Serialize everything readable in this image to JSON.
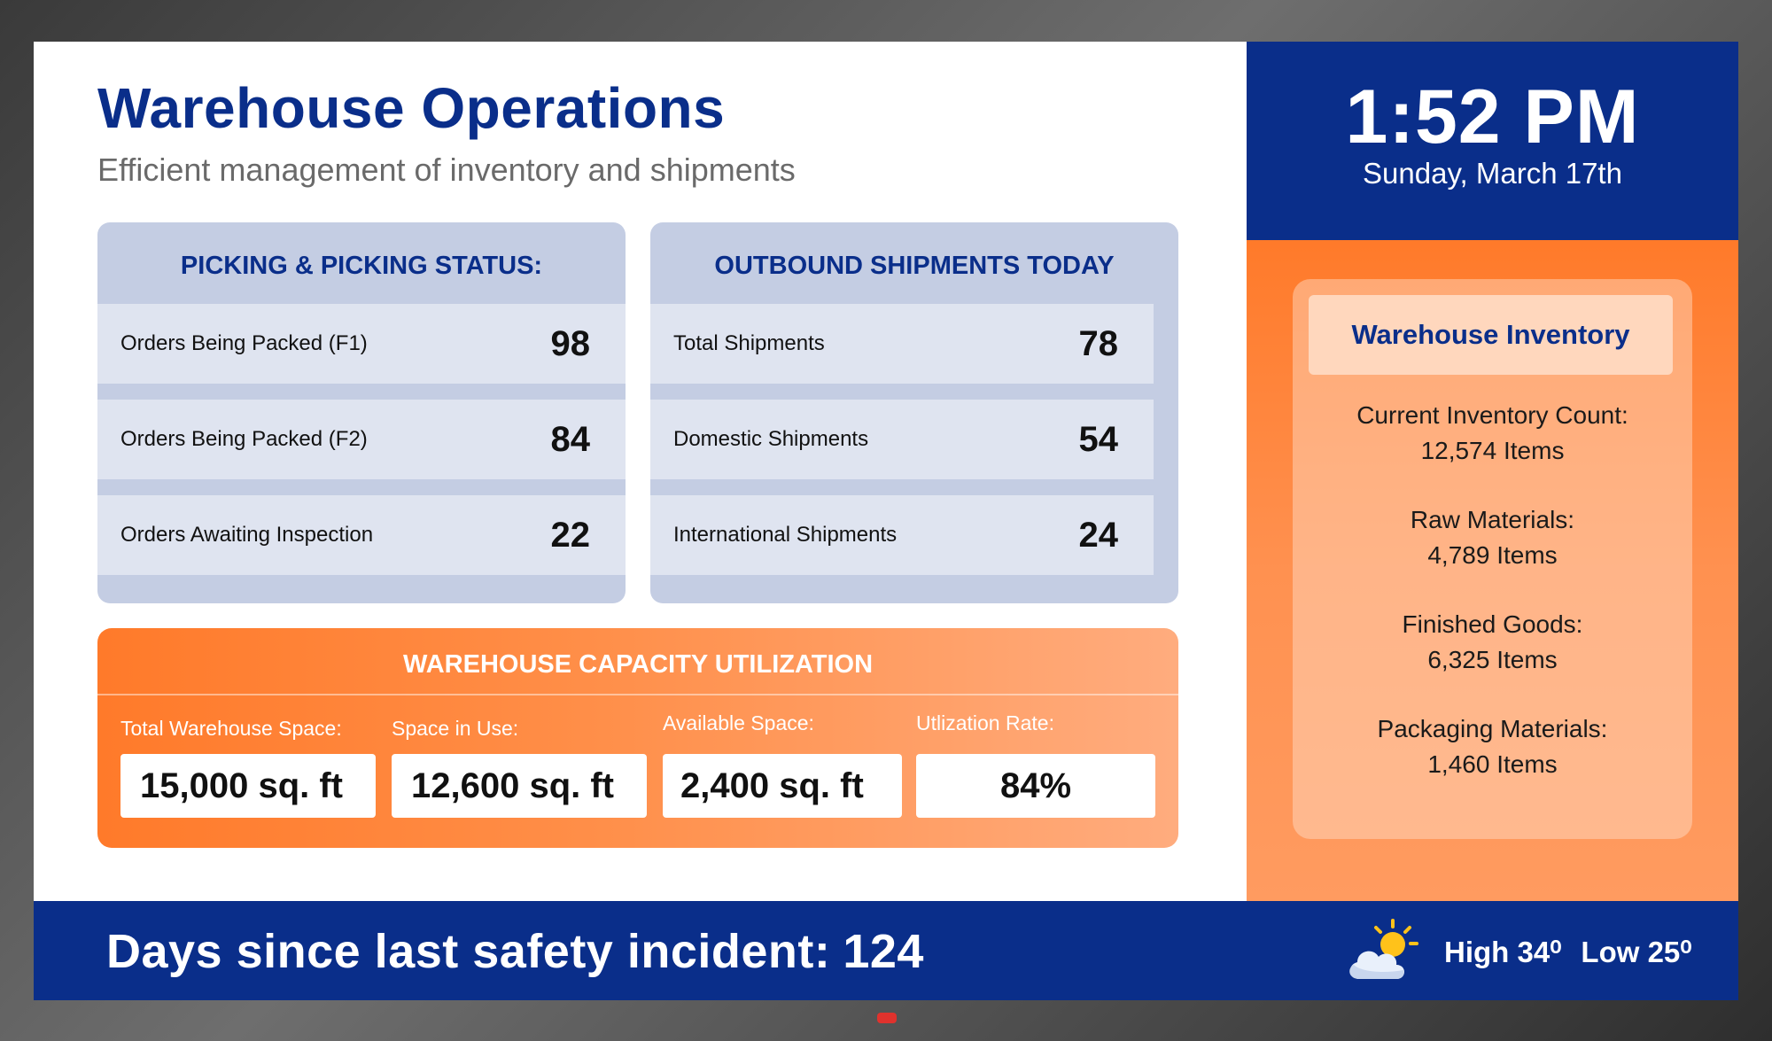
{
  "header": {
    "title": "Warehouse Operations",
    "subtitle": "Efficient management of inventory and shipments"
  },
  "picking": {
    "heading": "PICKING & PICKING STATUS:",
    "rows": [
      {
        "label": "Orders Being Packed (F1)",
        "value": "98"
      },
      {
        "label": "Orders Being Packed (F2)",
        "value": "84"
      },
      {
        "label": "Orders Awaiting Inspection",
        "value": "22"
      }
    ]
  },
  "shipments": {
    "heading": "OUTBOUND SHIPMENTS TODAY",
    "rows": [
      {
        "label": "Total Shipments",
        "value": "78"
      },
      {
        "label": "Domestic Shipments",
        "value": "54"
      },
      {
        "label": "International Shipments",
        "value": "24"
      }
    ]
  },
  "capacity": {
    "heading": "WAREHOUSE CAPACITY UTILIZATION",
    "cells": [
      {
        "label": "Total Warehouse Space:",
        "value": "15,000 sq. ft"
      },
      {
        "label": "Space in Use:",
        "value": "12,600 sq. ft"
      },
      {
        "label": "Available Space:",
        "value": "2,400 sq. ft"
      },
      {
        "label": "Utlization Rate:",
        "value": "84%"
      }
    ]
  },
  "clock": {
    "time": "1:52 PM",
    "date": "Sunday, March 17th"
  },
  "inventory": {
    "title": "Warehouse Inventory",
    "items": [
      {
        "label": "Current Inventory Count:",
        "value": "12,574 Items"
      },
      {
        "label": "Raw Materials:",
        "value": "4,789 Items"
      },
      {
        "label": "Finished Goods:",
        "value": "6,325 Items"
      },
      {
        "label": "Packaging Materials:",
        "value": "1,460 Items"
      }
    ]
  },
  "footer": {
    "safety_label": "Days since last safety incident:",
    "safety_days": "124",
    "weather_icon": "partly-cloudy-icon",
    "high": "High 34⁰",
    "low": "Low 25⁰"
  },
  "colors": {
    "navy": "#0a2e8a",
    "orange": "#ff7a2a",
    "panel_blue": "#c4cde3"
  }
}
